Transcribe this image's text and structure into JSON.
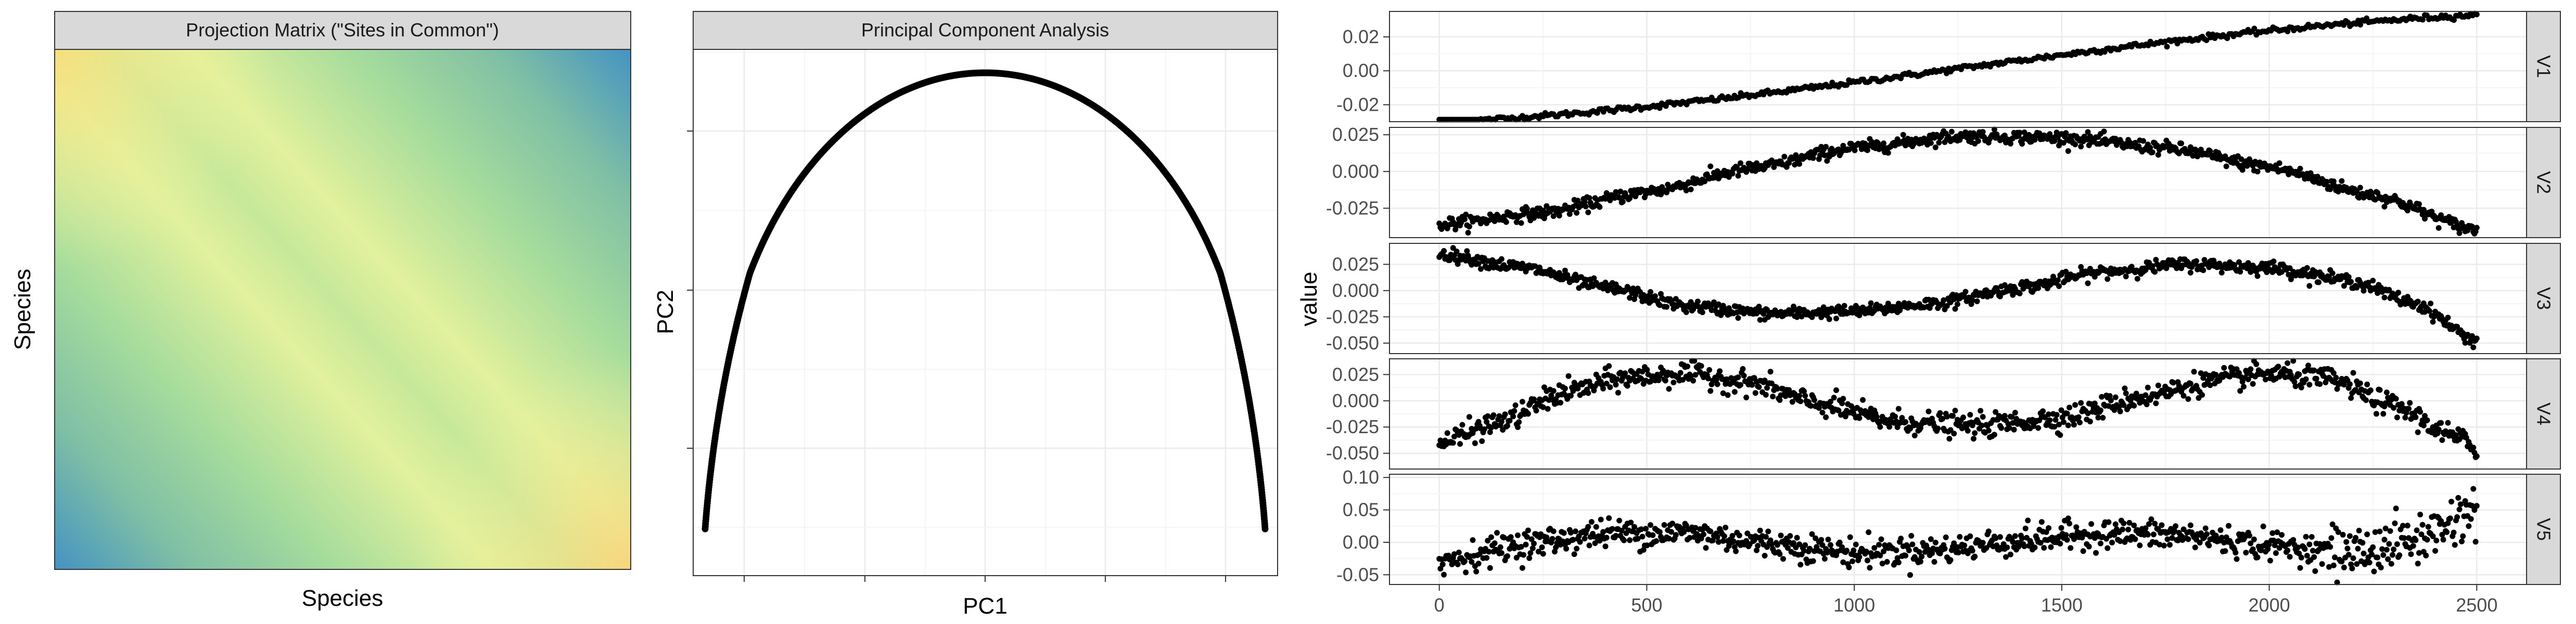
{
  "colors": {
    "strip_fill": "#d9d9d9",
    "panel_border": "#333333",
    "grid_major": "#ebebeb",
    "grid_minor": "#f5f5f5",
    "point": "#000000",
    "heatmap_low": "#4393c3",
    "heatmap_mid": "#a1d99b",
    "heatmap_high": "#f7f7a0",
    "heatmap_max": "#fdd878"
  },
  "chart_data": [
    {
      "type": "heatmap",
      "title": "Projection Matrix (\"Sites in Common\")",
      "xlabel": "Species",
      "ylabel": "Species",
      "tick_labels": "none",
      "description_of_values": "symmetric similarity matrix; high (yellow) near the anti-diagonal corners, low (blue) at bottom-left and top-right"
    },
    {
      "type": "scatter",
      "title": "Principal Component Analysis",
      "xlabel": "PC1",
      "ylabel": "PC2",
      "tick_labels": "none",
      "shape": "horseshoe arch of points opening downward"
    },
    {
      "type": "scatter",
      "xlabel": "",
      "ylabel": "value",
      "x_range": [
        0,
        2500
      ],
      "x_ticks": [
        "0",
        "500",
        "1000",
        "1500",
        "2000",
        "2500"
      ],
      "facets": [
        {
          "name": "V1",
          "ylim": [
            -0.03,
            0.035
          ],
          "yticks": [
            "0.02",
            "0.00",
            "-0.02"
          ],
          "yvals": [
            0.02,
            0.0,
            -0.02
          ],
          "curve": [
            [
              0,
              -0.0305
            ],
            [
              2500,
              0.033
            ]
          ],
          "noise": 0.0008
        },
        {
          "name": "V2",
          "ylim": [
            -0.045,
            0.03
          ],
          "yticks": [
            "0.025",
            "0.000",
            "-0.025"
          ],
          "yvals": [
            0.025,
            0.0,
            -0.025
          ],
          "curve": [
            [
              0,
              -0.036
            ],
            [
              250,
              -0.028
            ],
            [
              500,
              -0.014
            ],
            [
              750,
              0.002
            ],
            [
              1000,
              0.016
            ],
            [
              1250,
              0.024
            ],
            [
              1500,
              0.023
            ],
            [
              1750,
              0.016
            ],
            [
              2000,
              0.003
            ],
            [
              2250,
              -0.016
            ],
            [
              2500,
              -0.04
            ]
          ],
          "noise": 0.0022
        },
        {
          "name": "V3",
          "ylim": [
            -0.06,
            0.045
          ],
          "yticks": [
            "0.025",
            "0.000",
            "-0.025",
            "-0.050"
          ],
          "yvals": [
            0.025,
            0.0,
            -0.025,
            -0.05
          ],
          "curve": [
            [
              0,
              0.035
            ],
            [
              200,
              0.022
            ],
            [
              400,
              0.003
            ],
            [
              600,
              -0.015
            ],
            [
              800,
              -0.022
            ],
            [
              1000,
              -0.02
            ],
            [
              1200,
              -0.012
            ],
            [
              1400,
              0.003
            ],
            [
              1600,
              0.018
            ],
            [
              1800,
              0.025
            ],
            [
              2000,
              0.022
            ],
            [
              2200,
              0.009
            ],
            [
              2350,
              -0.012
            ],
            [
              2500,
              -0.048
            ]
          ],
          "noise": 0.003
        },
        {
          "name": "V4",
          "ylim": [
            -0.065,
            0.04
          ],
          "yticks": [
            "0.025",
            "0.000",
            "-0.025",
            "-0.050"
          ],
          "yvals": [
            0.025,
            0.0,
            -0.025,
            -0.05
          ],
          "curve": [
            [
              0,
              -0.04
            ],
            [
              150,
              -0.02
            ],
            [
              300,
              0.008
            ],
            [
              450,
              0.022
            ],
            [
              600,
              0.026
            ],
            [
              750,
              0.017
            ],
            [
              900,
              -0.002
            ],
            [
              1100,
              -0.02
            ],
            [
              1300,
              -0.024
            ],
            [
              1500,
              -0.016
            ],
            [
              1700,
              0.004
            ],
            [
              1850,
              0.018
            ],
            [
              2000,
              0.026
            ],
            [
              2150,
              0.02
            ],
            [
              2300,
              -0.005
            ],
            [
              2450,
              -0.035
            ],
            [
              2500,
              -0.045
            ]
          ],
          "noise": 0.0055
        },
        {
          "name": "V5",
          "ylim": [
            -0.065,
            0.105
          ],
          "yticks": [
            "0.10",
            "0.05",
            "0.00",
            "-0.05"
          ],
          "yvals": [
            0.1,
            0.05,
            0.0,
            -0.05
          ],
          "curve": [
            [
              0,
              -0.03
            ],
            [
              200,
              -0.003
            ],
            [
              400,
              0.014
            ],
            [
              600,
              0.015
            ],
            [
              800,
              -0.002
            ],
            [
              1000,
              -0.016
            ],
            [
              1200,
              -0.012
            ],
            [
              1400,
              0.003
            ],
            [
              1600,
              0.014
            ],
            [
              1800,
              0.01
            ],
            [
              2000,
              -0.005
            ],
            [
              2200,
              -0.016
            ],
            [
              2350,
              0.003
            ],
            [
              2500,
              0.05
            ]
          ],
          "noise": 0.011
        }
      ]
    }
  ]
}
